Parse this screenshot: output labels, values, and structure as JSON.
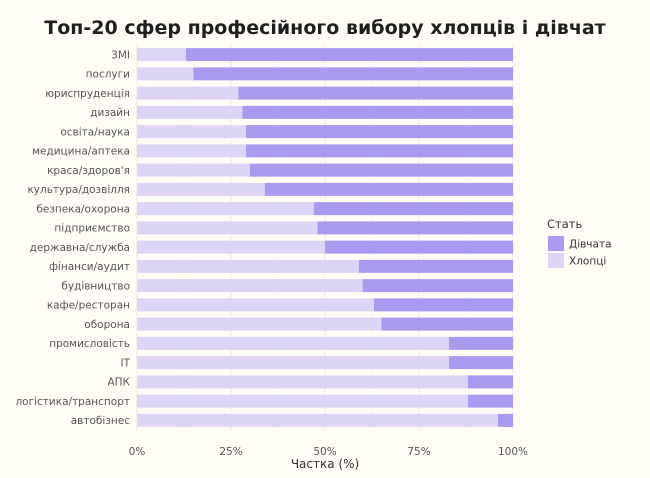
{
  "chart_data": {
    "type": "bar",
    "orientation": "horizontal",
    "stacked": true,
    "title": "Топ-20 сфер професійного вибору хлопців і дівчат",
    "xlabel": "Частка (%)",
    "ylabel": "",
    "xlim": [
      0,
      100
    ],
    "xticks": [
      "0%",
      "25%",
      "50%",
      "75%",
      "100%"
    ],
    "grid": true,
    "legend": {
      "title": "Стать",
      "placement": "right",
      "entries": [
        "Дівчата",
        "Хлопці"
      ]
    },
    "categories": [
      "ЗМІ",
      "послуги",
      "юриспруденція",
      "дизайн",
      "освіта/наука",
      "медицина/аптека",
      "краса/здоров'я",
      "культура/дозвілля",
      "безпека/охорона",
      "підприємство",
      "державна/служба",
      "фінанси/аудит",
      "будівництво",
      "кафе/ресторан",
      "оборона",
      "промисловість",
      "IT",
      "АПК",
      "логістика/транспорт",
      "автобізнес"
    ],
    "series": [
      {
        "name": "Хлопці",
        "color": "#ddd5f7",
        "values": [
          13,
          15,
          27,
          28,
          29,
          29,
          30,
          34,
          47,
          48,
          50,
          59,
          60,
          63,
          65,
          83,
          83,
          88,
          88,
          96
        ]
      },
      {
        "name": "Дівчата",
        "color": "#a99af0",
        "values": [
          87,
          85,
          73,
          72,
          71,
          71,
          70,
          66,
          53,
          52,
          50,
          41,
          40,
          37,
          35,
          17,
          17,
          12,
          12,
          4
        ]
      }
    ]
  }
}
